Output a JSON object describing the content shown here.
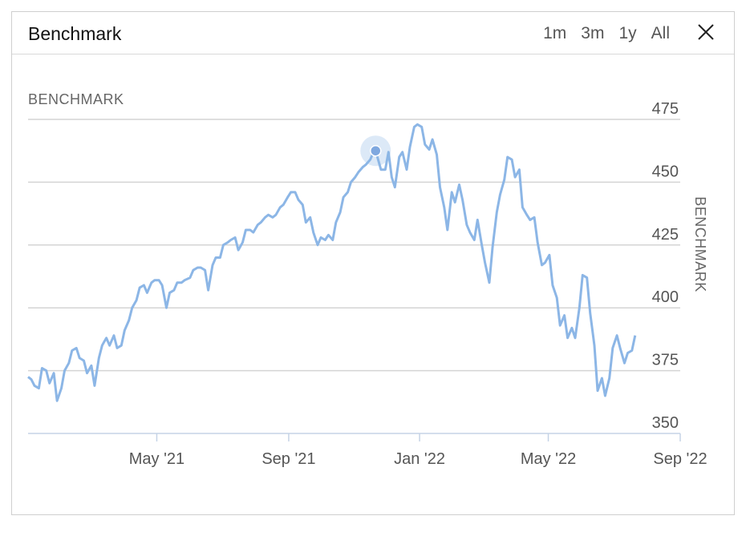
{
  "panel": {
    "title": "Benchmark",
    "ranges": [
      "1m",
      "3m",
      "1y",
      "All"
    ],
    "close_icon": "close-icon"
  },
  "chart_data": {
    "type": "line",
    "series_label": "BENCHMARK",
    "ylabel": "BENCHMARK",
    "ylim": [
      350,
      475
    ],
    "yticks": [
      350,
      375,
      400,
      425,
      450,
      475
    ],
    "xlim": [
      "2021-01-01",
      "2022-09-01"
    ],
    "xticks": [
      {
        "date": "2021-05-01",
        "label": "May '21"
      },
      {
        "date": "2021-09-01",
        "label": "Sep '21"
      },
      {
        "date": "2022-01-01",
        "label": "Jan '22"
      },
      {
        "date": "2022-05-01",
        "label": "May '22"
      },
      {
        "date": "2022-09-01",
        "label": "Sep '22"
      }
    ],
    "line_color": "#8cb6e6",
    "highlight": {
      "x": "2021-11-21",
      "y": 462.5
    },
    "points": [
      [
        "2021-01-01",
        372.5
      ],
      [
        "2021-01-04",
        371.5
      ],
      [
        "2021-01-07",
        369
      ],
      [
        "2021-01-11",
        368
      ],
      [
        "2021-01-14",
        376
      ],
      [
        "2021-01-18",
        375
      ],
      [
        "2021-01-21",
        370
      ],
      [
        "2021-01-25",
        374
      ],
      [
        "2021-01-28",
        363
      ],
      [
        "2021-02-01",
        368
      ],
      [
        "2021-02-04",
        375
      ],
      [
        "2021-02-08",
        378
      ],
      [
        "2021-02-11",
        383
      ],
      [
        "2021-02-15",
        384
      ],
      [
        "2021-02-18",
        380
      ],
      [
        "2021-02-22",
        379
      ],
      [
        "2021-02-25",
        374
      ],
      [
        "2021-03-01",
        377
      ],
      [
        "2021-03-04",
        369
      ],
      [
        "2021-03-08",
        380
      ],
      [
        "2021-03-11",
        385
      ],
      [
        "2021-03-15",
        388
      ],
      [
        "2021-03-18",
        385
      ],
      [
        "2021-03-22",
        389
      ],
      [
        "2021-03-25",
        384
      ],
      [
        "2021-03-29",
        385
      ],
      [
        "2021-04-01",
        391
      ],
      [
        "2021-04-05",
        395
      ],
      [
        "2021-04-08",
        400
      ],
      [
        "2021-04-12",
        403
      ],
      [
        "2021-04-15",
        408
      ],
      [
        "2021-04-19",
        409
      ],
      [
        "2021-04-22",
        406
      ],
      [
        "2021-04-26",
        410
      ],
      [
        "2021-04-29",
        411
      ],
      [
        "2021-05-03",
        411
      ],
      [
        "2021-05-06",
        409
      ],
      [
        "2021-05-10",
        400
      ],
      [
        "2021-05-13",
        406
      ],
      [
        "2021-05-17",
        407
      ],
      [
        "2021-05-20",
        410
      ],
      [
        "2021-05-24",
        410
      ],
      [
        "2021-05-27",
        411
      ],
      [
        "2021-06-01",
        412
      ],
      [
        "2021-06-04",
        415
      ],
      [
        "2021-06-08",
        416
      ],
      [
        "2021-06-11",
        416
      ],
      [
        "2021-06-15",
        415
      ],
      [
        "2021-06-18",
        407
      ],
      [
        "2021-06-22",
        417
      ],
      [
        "2021-06-25",
        420
      ],
      [
        "2021-06-29",
        420
      ],
      [
        "2021-07-02",
        425
      ],
      [
        "2021-07-06",
        426
      ],
      [
        "2021-07-09",
        427
      ],
      [
        "2021-07-13",
        428
      ],
      [
        "2021-07-16",
        423
      ],
      [
        "2021-07-20",
        426
      ],
      [
        "2021-07-23",
        431
      ],
      [
        "2021-07-27",
        431
      ],
      [
        "2021-07-30",
        430
      ],
      [
        "2021-08-03",
        433
      ],
      [
        "2021-08-06",
        434
      ],
      [
        "2021-08-10",
        436
      ],
      [
        "2021-08-13",
        437
      ],
      [
        "2021-08-17",
        436
      ],
      [
        "2021-08-20",
        437
      ],
      [
        "2021-08-24",
        440
      ],
      [
        "2021-08-27",
        441
      ],
      [
        "2021-08-31",
        444
      ],
      [
        "2021-09-03",
        446
      ],
      [
        "2021-09-07",
        446
      ],
      [
        "2021-09-10",
        443
      ],
      [
        "2021-09-14",
        441
      ],
      [
        "2021-09-17",
        434
      ],
      [
        "2021-09-21",
        436
      ],
      [
        "2021-09-24",
        430
      ],
      [
        "2021-09-28",
        425
      ],
      [
        "2021-10-01",
        428
      ],
      [
        "2021-10-05",
        427
      ],
      [
        "2021-10-08",
        429
      ],
      [
        "2021-10-12",
        427
      ],
      [
        "2021-10-15",
        434
      ],
      [
        "2021-10-19",
        438
      ],
      [
        "2021-10-22",
        444
      ],
      [
        "2021-10-26",
        446
      ],
      [
        "2021-10-29",
        450
      ],
      [
        "2021-11-02",
        452
      ],
      [
        "2021-11-05",
        454
      ],
      [
        "2021-11-09",
        456
      ],
      [
        "2021-11-12",
        457
      ],
      [
        "2021-11-16",
        459
      ],
      [
        "2021-11-19",
        462
      ],
      [
        "2021-11-22",
        461
      ],
      [
        "2021-11-26",
        455
      ],
      [
        "2021-11-30",
        455
      ],
      [
        "2021-12-03",
        462
      ],
      [
        "2021-12-06",
        452
      ],
      [
        "2021-12-09",
        448
      ],
      [
        "2021-12-13",
        460
      ],
      [
        "2021-12-16",
        462
      ],
      [
        "2021-12-20",
        455
      ],
      [
        "2021-12-23",
        464
      ],
      [
        "2021-12-27",
        472
      ],
      [
        "2021-12-30",
        473
      ],
      [
        "2022-01-03",
        472
      ],
      [
        "2022-01-06",
        465
      ],
      [
        "2022-01-10",
        463
      ],
      [
        "2022-01-13",
        467
      ],
      [
        "2022-01-17",
        461
      ],
      [
        "2022-01-20",
        448
      ],
      [
        "2022-01-24",
        440
      ],
      [
        "2022-01-27",
        431
      ],
      [
        "2022-01-31",
        446
      ],
      [
        "2022-02-03",
        442
      ],
      [
        "2022-02-07",
        449
      ],
      [
        "2022-02-10",
        443
      ],
      [
        "2022-02-14",
        433
      ],
      [
        "2022-02-17",
        430
      ],
      [
        "2022-02-21",
        427
      ],
      [
        "2022-02-24",
        435
      ],
      [
        "2022-02-28",
        425
      ],
      [
        "2022-03-03",
        418
      ],
      [
        "2022-03-07",
        410
      ],
      [
        "2022-03-10",
        424
      ],
      [
        "2022-03-14",
        438
      ],
      [
        "2022-03-17",
        445
      ],
      [
        "2022-03-21",
        451
      ],
      [
        "2022-03-24",
        460
      ],
      [
        "2022-03-28",
        459
      ],
      [
        "2022-03-31",
        452
      ],
      [
        "2022-04-04",
        455
      ],
      [
        "2022-04-07",
        440
      ],
      [
        "2022-04-11",
        437
      ],
      [
        "2022-04-14",
        435
      ],
      [
        "2022-04-18",
        436
      ],
      [
        "2022-04-21",
        426
      ],
      [
        "2022-04-25",
        417
      ],
      [
        "2022-04-28",
        418
      ],
      [
        "2022-05-02",
        421
      ],
      [
        "2022-05-05",
        409
      ],
      [
        "2022-05-09",
        404
      ],
      [
        "2022-05-12",
        393
      ],
      [
        "2022-05-16",
        397
      ],
      [
        "2022-05-19",
        388
      ],
      [
        "2022-05-23",
        392
      ],
      [
        "2022-05-26",
        388
      ],
      [
        "2022-05-30",
        400
      ],
      [
        "2022-06-02",
        413
      ],
      [
        "2022-06-06",
        412
      ],
      [
        "2022-06-09",
        398
      ],
      [
        "2022-06-13",
        385
      ],
      [
        "2022-06-16",
        367
      ],
      [
        "2022-06-20",
        372
      ],
      [
        "2022-06-23",
        365
      ],
      [
        "2022-06-27",
        372
      ],
      [
        "2022-06-30",
        384
      ],
      [
        "2022-07-04",
        389
      ],
      [
        "2022-07-07",
        384
      ],
      [
        "2022-07-11",
        378
      ],
      [
        "2022-07-14",
        382
      ],
      [
        "2022-07-18",
        383
      ],
      [
        "2022-07-21",
        389
      ]
    ]
  }
}
